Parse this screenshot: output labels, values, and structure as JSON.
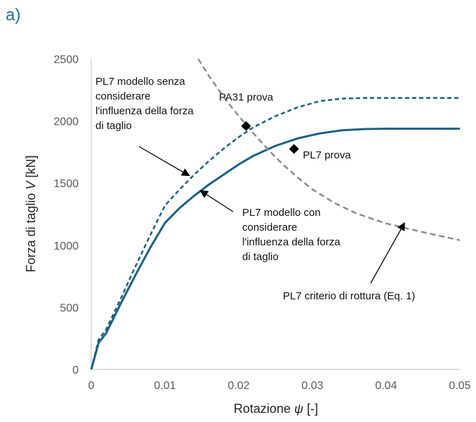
{
  "panel_label": "a)",
  "chart_data": {
    "type": "line",
    "title": "",
    "xlabel": {
      "prefix": "Rotazione ",
      "symbol": "ψ",
      "suffix": " [-]"
    },
    "ylabel": {
      "prefix": "Forza di taglio ",
      "symbol": "V",
      "suffix": " [kN]"
    },
    "xlim": [
      0,
      0.05
    ],
    "ylim": [
      0,
      2500
    ],
    "x_ticks": [
      0,
      0.01,
      0.02,
      0.03,
      0.04,
      0.05
    ],
    "x_tick_labels": [
      "0",
      "0.01",
      "0.02",
      "0.03",
      "0.04",
      "0.05"
    ],
    "y_ticks": [
      0,
      500,
      1000,
      1500,
      2000,
      2500
    ],
    "y_tick_labels": [
      "0",
      "500",
      "1000",
      "1500",
      "2000",
      "2500"
    ],
    "grid": false,
    "colors": {
      "model": "#1a6180",
      "criterion": "#8c8c8c",
      "point": "#000000"
    },
    "series": [
      {
        "style": "dashed",
        "color": "#1a6180",
        "points": [
          [
            0,
            0
          ],
          [
            0.001,
            240
          ],
          [
            0.002,
            320
          ],
          [
            0.004,
            570
          ],
          [
            0.006,
            830
          ],
          [
            0.008,
            1080
          ],
          [
            0.01,
            1320
          ],
          [
            0.012,
            1450
          ],
          [
            0.014,
            1570
          ],
          [
            0.016,
            1680
          ],
          [
            0.018,
            1780
          ],
          [
            0.02,
            1870
          ],
          [
            0.022,
            1950
          ],
          [
            0.025,
            2040
          ],
          [
            0.028,
            2110
          ],
          [
            0.031,
            2160
          ],
          [
            0.034,
            2180
          ],
          [
            0.037,
            2185
          ],
          [
            0.04,
            2185
          ],
          [
            0.045,
            2185
          ],
          [
            0.05,
            2185
          ]
        ]
      },
      {
        "style": "solid",
        "color": "#1a6180",
        "points": [
          [
            0,
            0
          ],
          [
            0.001,
            215
          ],
          [
            0.002,
            290
          ],
          [
            0.004,
            530
          ],
          [
            0.006,
            760
          ],
          [
            0.008,
            980
          ],
          [
            0.01,
            1180
          ],
          [
            0.012,
            1300
          ],
          [
            0.014,
            1400
          ],
          [
            0.016,
            1490
          ],
          [
            0.018,
            1570
          ],
          [
            0.02,
            1650
          ],
          [
            0.022,
            1720
          ],
          [
            0.025,
            1800
          ],
          [
            0.028,
            1860
          ],
          [
            0.031,
            1900
          ],
          [
            0.034,
            1925
          ],
          [
            0.037,
            1935
          ],
          [
            0.04,
            1938
          ],
          [
            0.045,
            1938
          ],
          [
            0.05,
            1938
          ]
        ]
      },
      {
        "style": "dashed",
        "color": "#8c8c8c",
        "points": [
          [
            0.0145,
            2500
          ],
          [
            0.016,
            2360
          ],
          [
            0.018,
            2190
          ],
          [
            0.02,
            2040
          ],
          [
            0.022,
            1900
          ],
          [
            0.024,
            1770
          ],
          [
            0.026,
            1650
          ],
          [
            0.028,
            1545
          ],
          [
            0.03,
            1450
          ],
          [
            0.033,
            1340
          ],
          [
            0.036,
            1255
          ],
          [
            0.04,
            1175
          ],
          [
            0.045,
            1105
          ],
          [
            0.05,
            1040
          ]
        ]
      }
    ],
    "points": [
      {
        "label": "PA31 prova",
        "x": 0.021,
        "y": 1960
      },
      {
        "label": "PL7 prova",
        "x": 0.0275,
        "y": 1775
      }
    ],
    "annotations": [
      {
        "lines": [
          "PL7 modello senza",
          "considerare",
          "l'influenza della forza",
          "di taglio"
        ],
        "arrow_to": [
          0.0133,
          1560
        ]
      },
      {
        "lines": [
          "PL7 modello con",
          "considerare",
          "l'influenza della forza",
          "di taglio"
        ],
        "arrow_to": [
          0.0148,
          1440
        ]
      },
      {
        "lines": [
          "PL7 criterio di rottura (Eq. 1)"
        ],
        "arrow_to": [
          0.0425,
          1180
        ]
      }
    ]
  }
}
